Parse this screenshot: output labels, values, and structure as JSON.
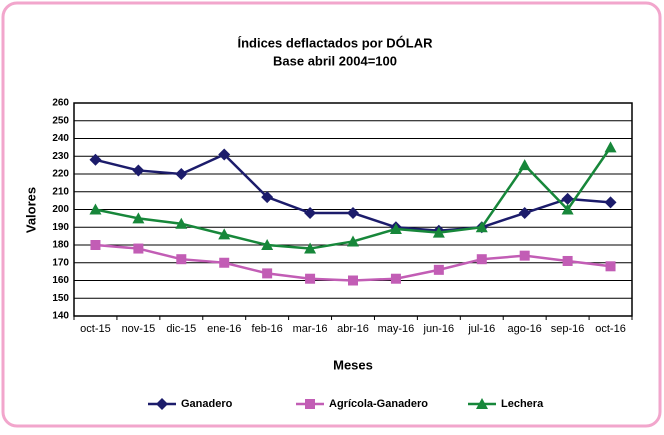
{
  "chart_data": {
    "type": "line",
    "title": "Índices deflactados por DÓLAR",
    "subtitle": "Base abril 2004=100",
    "x_label": "Meses",
    "y_label": "Valores",
    "categories": [
      "oct-15",
      "nov-15",
      "dic-15",
      "ene-16",
      "feb-16",
      "mar-16",
      "abr-16",
      "may-16",
      "jun-16",
      "jul-16",
      "ago-16",
      "sep-16",
      "oct-16"
    ],
    "series": [
      {
        "name": "Ganadero",
        "color": "#1c1c6b",
        "marker": "diamond",
        "values": [
          228,
          222,
          220,
          231,
          207,
          198,
          198,
          190,
          188,
          190,
          198,
          206,
          204
        ]
      },
      {
        "name": "Agrícola-Ganadero",
        "color": "#c25db5",
        "marker": "square",
        "values": [
          180,
          178,
          172,
          170,
          164,
          161,
          160,
          161,
          166,
          172,
          174,
          171,
          168
        ]
      },
      {
        "name": "Lechera",
        "color": "#17873a",
        "marker": "triangle",
        "values": [
          200,
          195,
          192,
          186,
          180,
          178,
          182,
          189,
          187,
          190,
          225,
          200,
          235
        ]
      }
    ],
    "ylim": [
      140,
      260
    ],
    "yticks": [
      140,
      150,
      160,
      170,
      180,
      190,
      200,
      210,
      220,
      230,
      240,
      250,
      260
    ],
    "grid": true,
    "legend": "bottom"
  }
}
